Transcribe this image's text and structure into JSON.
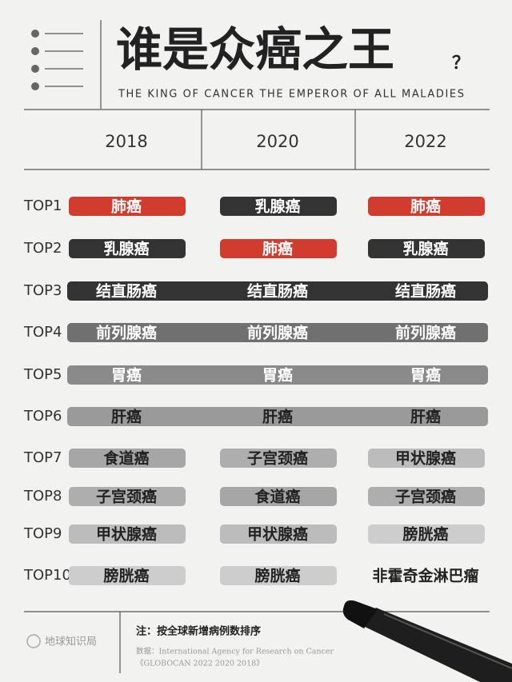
{
  "header": {
    "title": "谁是众癌之王",
    "title_mark": "？",
    "subtitle": "THE KING OF CANCER THE EMPEROR OF ALL MALADIES"
  },
  "table": {
    "columns": [
      "2018",
      "2020",
      "2022"
    ],
    "rows": [
      {
        "rank": "TOP1",
        "merged": false,
        "cells": [
          {
            "label": "肺癌",
            "color": "#d13c2f"
          },
          {
            "label": "乳腺癌",
            "color": "#333333"
          },
          {
            "label": "肺癌",
            "color": "#d13c2f"
          }
        ]
      },
      {
        "rank": "TOP2",
        "merged": false,
        "cells": [
          {
            "label": "乳腺癌",
            "color": "#333333"
          },
          {
            "label": "肺癌",
            "color": "#d13c2f"
          },
          {
            "label": "乳腺癌",
            "color": "#333333"
          }
        ]
      },
      {
        "rank": "TOP3",
        "merged": true,
        "cells": [
          {
            "label": "结直肠癌",
            "color": "#333333"
          },
          {
            "label": "结直肠癌",
            "color": "#333333"
          },
          {
            "label": "结直肠癌",
            "color": "#333333"
          }
        ]
      },
      {
        "rank": "TOP4",
        "merged": true,
        "cells": [
          {
            "label": "前列腺癌",
            "color": "#707070"
          },
          {
            "label": "前列腺癌",
            "color": "#707070"
          },
          {
            "label": "前列腺癌",
            "color": "#707070"
          }
        ]
      },
      {
        "rank": "TOP5",
        "merged": true,
        "cells": [
          {
            "label": "胃癌",
            "color": "#8a8a8a"
          },
          {
            "label": "胃癌",
            "color": "#8a8a8a"
          },
          {
            "label": "胃癌",
            "color": "#8a8a8a"
          }
        ]
      },
      {
        "rank": "TOP6",
        "merged": true,
        "cells": [
          {
            "label": "肝癌",
            "color": "#9a9a9a"
          },
          {
            "label": "肝癌",
            "color": "#9a9a9a"
          },
          {
            "label": "肝癌",
            "color": "#9a9a9a"
          }
        ]
      },
      {
        "rank": "TOP7",
        "merged": false,
        "cells": [
          {
            "label": "食道癌",
            "color": "#a6a6a6"
          },
          {
            "label": "子宫颈癌",
            "color": "#aeaeae"
          },
          {
            "label": "甲状腺癌",
            "color": "#bcbcbc"
          }
        ]
      },
      {
        "rank": "TOP8",
        "merged": false,
        "cells": [
          {
            "label": "子宫颈癌",
            "color": "#aeaeae"
          },
          {
            "label": "食道癌",
            "color": "#a6a6a6"
          },
          {
            "label": "子宫颈癌",
            "color": "#aeaeae"
          }
        ]
      },
      {
        "rank": "TOP9",
        "merged": false,
        "cells": [
          {
            "label": "甲状腺癌",
            "color": "#bcbcbc"
          },
          {
            "label": "甲状腺癌",
            "color": "#bcbcbc"
          },
          {
            "label": "膀胱癌",
            "color": "#cdcdcd"
          }
        ]
      },
      {
        "rank": "TOP10",
        "merged": false,
        "cells": [
          {
            "label": "膀胱癌",
            "color": "#cdcdcd"
          },
          {
            "label": "膀胱癌",
            "color": "#cdcdcd"
          },
          {
            "label": "非霍奇金淋巴瘤"
          }
        ]
      }
    ]
  },
  "footer": {
    "logo": "地球知识局",
    "note": "注：按全球新增病例数排序",
    "source": "数据：International Agency for Research on Cancer",
    "source_title": "《GLOBOCAN 2022 2020 2018》"
  }
}
